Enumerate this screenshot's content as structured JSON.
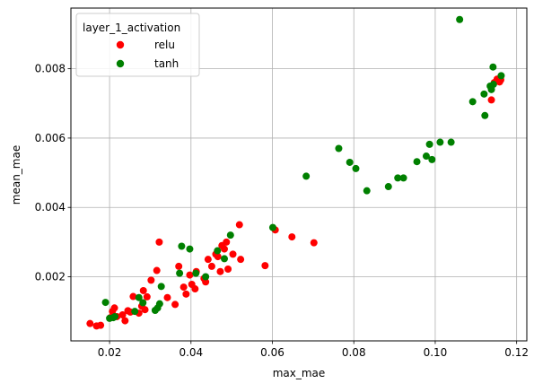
{
  "chart_data": {
    "type": "scatter",
    "title": "",
    "xlabel": "max_mae",
    "ylabel": "mean_mae",
    "xlim": [
      0.0105,
      0.1225
    ],
    "ylim": [
      0.00015,
      0.00975
    ],
    "xticks": [
      {
        "value": 0.02,
        "label": "0.02"
      },
      {
        "value": 0.04,
        "label": "0.04"
      },
      {
        "value": 0.06,
        "label": "0.06"
      },
      {
        "value": 0.08,
        "label": "0.08"
      },
      {
        "value": 0.1,
        "label": "0.10"
      },
      {
        "value": 0.12,
        "label": "0.12"
      }
    ],
    "yticks": [
      {
        "value": 0.002,
        "label": "0.002"
      },
      {
        "value": 0.004,
        "label": "0.004"
      },
      {
        "value": 0.006,
        "label": "0.006"
      },
      {
        "value": 0.008,
        "label": "0.008"
      }
    ],
    "grid": true,
    "legend": {
      "title": "layer_1_activation",
      "position": "top-left"
    },
    "series": [
      {
        "name": "relu",
        "color": "#ff0000",
        "points": [
          [
            0.0152,
            0.00065
          ],
          [
            0.0168,
            0.00058
          ],
          [
            0.0178,
            0.0006
          ],
          [
            0.0202,
            0.00082
          ],
          [
            0.0207,
            0.001
          ],
          [
            0.0212,
            0.0011
          ],
          [
            0.0218,
            0.00085
          ],
          [
            0.0232,
            0.0009
          ],
          [
            0.0238,
            0.00073
          ],
          [
            0.0245,
            0.00102
          ],
          [
            0.0251,
            0.00098
          ],
          [
            0.0258,
            0.00143
          ],
          [
            0.0272,
            0.00095
          ],
          [
            0.0279,
            0.00115
          ],
          [
            0.0283,
            0.0016
          ],
          [
            0.0287,
            0.00105
          ],
          [
            0.0292,
            0.00142
          ],
          [
            0.0302,
            0.0019
          ],
          [
            0.0316,
            0.00218
          ],
          [
            0.0322,
            0.003
          ],
          [
            0.0342,
            0.0014
          ],
          [
            0.0361,
            0.0012
          ],
          [
            0.037,
            0.0023
          ],
          [
            0.0382,
            0.0017
          ],
          [
            0.0388,
            0.0015
          ],
          [
            0.0397,
            0.00205
          ],
          [
            0.0402,
            0.00178
          ],
          [
            0.041,
            0.00165
          ],
          [
            0.0413,
            0.00215
          ],
          [
            0.0432,
            0.00195
          ],
          [
            0.0436,
            0.00185
          ],
          [
            0.0442,
            0.0025
          ],
          [
            0.0451,
            0.0023
          ],
          [
            0.0461,
            0.00265
          ],
          [
            0.0466,
            0.00258
          ],
          [
            0.0472,
            0.00215
          ],
          [
            0.0476,
            0.0029
          ],
          [
            0.0482,
            0.0028
          ],
          [
            0.0487,
            0.003
          ],
          [
            0.0491,
            0.00222
          ],
          [
            0.0503,
            0.00265
          ],
          [
            0.0519,
            0.0035
          ],
          [
            0.0522,
            0.0025
          ],
          [
            0.0582,
            0.00232
          ],
          [
            0.0607,
            0.00335
          ],
          [
            0.0648,
            0.00315
          ],
          [
            0.0702,
            0.00298
          ],
          [
            0.1138,
            0.0071
          ],
          [
            0.1145,
            0.0076
          ],
          [
            0.1152,
            0.0077
          ],
          [
            0.1158,
            0.00762
          ],
          [
            0.1161,
            0.00768
          ]
        ]
      },
      {
        "name": "tanh",
        "color": "#008000",
        "points": [
          [
            0.019,
            0.00126
          ],
          [
            0.02,
            0.0008
          ],
          [
            0.0209,
            0.00082
          ],
          [
            0.0213,
            0.00085
          ],
          [
            0.0262,
            0.001
          ],
          [
            0.0272,
            0.0014
          ],
          [
            0.0282,
            0.00125
          ],
          [
            0.0312,
            0.00103
          ],
          [
            0.0318,
            0.0011
          ],
          [
            0.0323,
            0.00122
          ],
          [
            0.0327,
            0.00172
          ],
          [
            0.0372,
            0.0021
          ],
          [
            0.0377,
            0.00288
          ],
          [
            0.0397,
            0.0028
          ],
          [
            0.0412,
            0.0021
          ],
          [
            0.0436,
            0.002
          ],
          [
            0.0465,
            0.00275
          ],
          [
            0.0482,
            0.00252
          ],
          [
            0.0497,
            0.0032
          ],
          [
            0.0601,
            0.00342
          ],
          [
            0.0683,
            0.0049
          ],
          [
            0.0763,
            0.0057
          ],
          [
            0.079,
            0.0053
          ],
          [
            0.0805,
            0.00512
          ],
          [
            0.0832,
            0.00448
          ],
          [
            0.0885,
            0.0046
          ],
          [
            0.0908,
            0.00485
          ],
          [
            0.0922,
            0.00485
          ],
          [
            0.0955,
            0.00532
          ],
          [
            0.0978,
            0.00548
          ],
          [
            0.0986,
            0.00582
          ],
          [
            0.0992,
            0.00538
          ],
          [
            0.1012,
            0.00588
          ],
          [
            0.1039,
            0.00588
          ],
          [
            0.106,
            0.00942
          ],
          [
            0.1092,
            0.00705
          ],
          [
            0.112,
            0.00727
          ],
          [
            0.1122,
            0.00665
          ],
          [
            0.1135,
            0.0075
          ],
          [
            0.1138,
            0.0074
          ],
          [
            0.1142,
            0.00805
          ],
          [
            0.1143,
            0.00755
          ],
          [
            0.1162,
            0.0078
          ]
        ]
      }
    ]
  }
}
